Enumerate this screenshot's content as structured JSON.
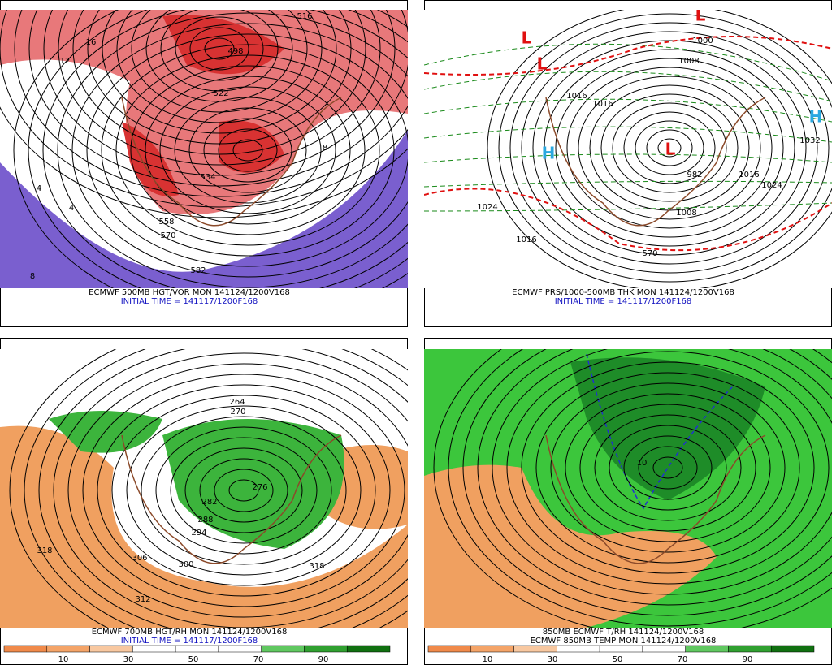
{
  "panels": [
    {
      "title": "ECMWF 500MB HGT/VOR MON 141124/1200V168",
      "subtitle": "INITIAL TIME = 141117/1200F168",
      "contour_labels": [
        "516",
        "498",
        "522",
        "534",
        "558",
        "570",
        "582",
        "16",
        "12",
        "4",
        "4",
        "8",
        "8"
      ]
    },
    {
      "title": "ECMWF PRS/1000-500MB THK MON 141124/1200V168",
      "subtitle": "INITIAL TIME = 141117/1200F168",
      "contour_labels": [
        "1024",
        "1016",
        "1016",
        "1016",
        "1008",
        "1000",
        "1024",
        "1032",
        "1016",
        "1008",
        "570",
        "982"
      ],
      "lows": [
        "L",
        "L",
        "L",
        "L"
      ],
      "highs": [
        "H",
        "H"
      ]
    },
    {
      "title": "ECMWF 700MB HGT/RH MON 141124/1200V168",
      "subtitle": "INITIAL TIME = 141117/1200F168",
      "contour_labels": [
        "318",
        "306",
        "312",
        "300",
        "294",
        "288",
        "282",
        "276",
        "270",
        "264",
        "318"
      ],
      "colorbar": [
        10,
        30,
        50,
        70,
        90
      ]
    },
    {
      "title": "850MB ECMWF T/RH 141124/1200V168",
      "subtitle": "ECMWF 850MB TEMP MON 141124/1200V168",
      "contour_labels": [
        "10"
      ],
      "colorbar": [
        10,
        30,
        50,
        70,
        90
      ]
    }
  ]
}
